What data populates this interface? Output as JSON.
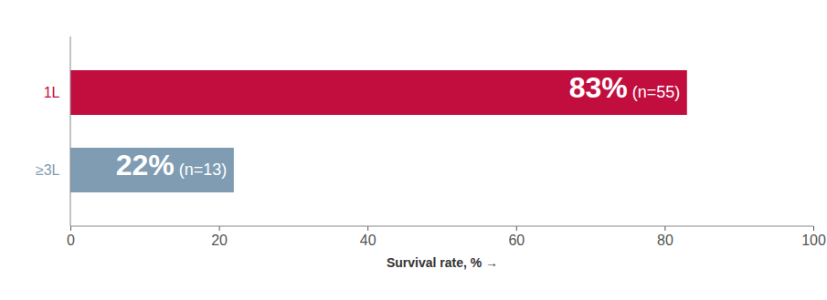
{
  "chart_data": {
    "type": "bar",
    "orientation": "horizontal",
    "categories": [
      "1L",
      "≥3L"
    ],
    "values": [
      83,
      22
    ],
    "value_labels": [
      "83% (n=55)",
      "22% (n=13)"
    ],
    "colors": [
      "#c20e3f",
      "#7f9cb3"
    ],
    "x_label": "Survival rate, %",
    "xlim": [
      0,
      100
    ],
    "xticks": [
      0,
      20,
      40,
      60,
      80,
      100
    ],
    "data_labels": true,
    "grid": false
  }
}
